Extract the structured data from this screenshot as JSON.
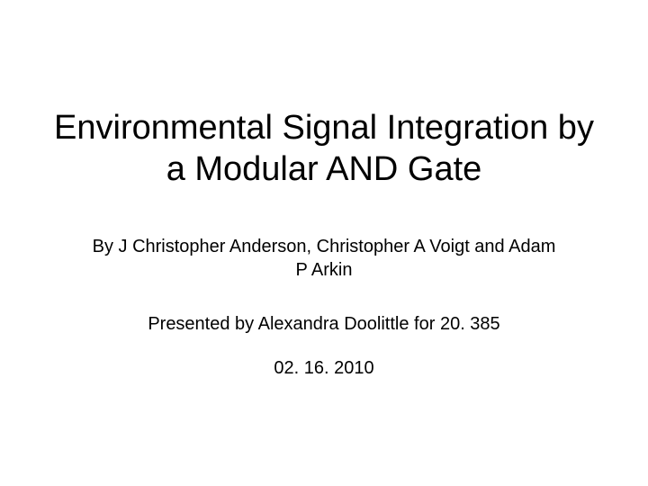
{
  "slide": {
    "title": "Environmental Signal Integration by a Modular AND Gate",
    "authors": "By J Christopher Anderson, Christopher A Voigt and Adam P Arkin",
    "presenter": "Presented by Alexandra Doolittle for 20. 385",
    "date": "02. 16. 2010",
    "background_color": "#ffffff",
    "text_color": "#000000",
    "title_fontsize": 38,
    "body_fontsize": 20
  }
}
